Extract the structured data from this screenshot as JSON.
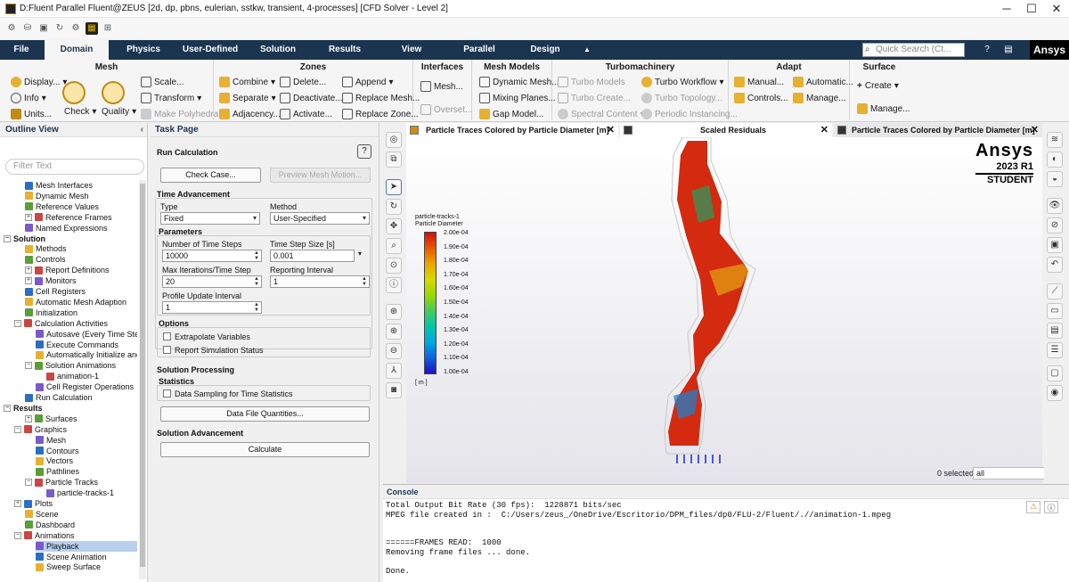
{
  "window": {
    "title": "D:Fluent Parallel Fluent@ZEUS  [2d, dp, pbns, eulerian, sstkw, transient, 4-processes] [CFD Solver - Level 2]",
    "minimize": "─",
    "maximize": "☐",
    "close": "✕"
  },
  "tabs": [
    "File",
    "Domain",
    "Physics",
    "User-Defined",
    "Solution",
    "Results",
    "View",
    "Parallel",
    "Design"
  ],
  "active_tab": "Domain",
  "quick_search": {
    "placeholder": "Quick Search (Ct..."
  },
  "brand": "Ansys",
  "ribbon": {
    "mesh": {
      "title": "Mesh",
      "display": "Display...",
      "info": "Info",
      "units": "Units...",
      "check": "Check",
      "quality": "Quality",
      "scale": "Scale...",
      "transform": "Transform",
      "make_polyhedra": "Make Polyhedra"
    },
    "zones": {
      "title": "Zones",
      "combine": "Combine",
      "separate": "Separate",
      "adjacency": "Adjacency...",
      "delete": "Delete...",
      "deactivate": "Deactivate...",
      "activate": "Activate...",
      "append": "Append",
      "replace_mesh": "Replace Mesh...",
      "replace_zone": "Replace Zone..."
    },
    "interfaces": {
      "title": "Interfaces",
      "mesh": "Mesh...",
      "overset": "Overset..."
    },
    "mesh_models": {
      "title": "Mesh Models",
      "dynamic_mesh": "Dynamic Mesh...",
      "mixing_planes": "Mixing Planes...",
      "gap_model": "Gap Model..."
    },
    "turbo": {
      "title": "Turbomachinery",
      "turbo_models": "Turbo Models",
      "turbo_create": "Turbo Create...",
      "spectral_content": "Spectral Content",
      "turbo_workflow": "Turbo Workflow",
      "turbo_topology": "Turbo Topology...",
      "periodic_instancing": "Periodic Instancing..."
    },
    "adapt": {
      "title": "Adapt",
      "manual": "Manual...",
      "controls": "Controls...",
      "automatic": "Automatic...",
      "manage": "Manage..."
    },
    "surface": {
      "title": "Surface",
      "create": "Create",
      "manage": "Manage..."
    }
  },
  "outline": {
    "title": "Outline View",
    "filter_placeholder": "Filter Text",
    "items": [
      {
        "label": "Mesh Interfaces",
        "level": 2
      },
      {
        "label": "Dynamic Mesh",
        "level": 2
      },
      {
        "label": "Reference Values",
        "level": 2
      },
      {
        "label": "Reference Frames",
        "level": 2,
        "exp": "+"
      },
      {
        "label": "Named Expressions",
        "level": 2
      },
      {
        "label": "Solution",
        "level": 0,
        "exp": "−",
        "hdr": true
      },
      {
        "label": "Methods",
        "level": 2
      },
      {
        "label": "Controls",
        "level": 2
      },
      {
        "label": "Report Definitions",
        "level": 2,
        "exp": "+"
      },
      {
        "label": "Monitors",
        "level": 2,
        "exp": "+"
      },
      {
        "label": "Cell Registers",
        "level": 2
      },
      {
        "label": "Automatic Mesh Adaption",
        "level": 2
      },
      {
        "label": "Initialization",
        "level": 2
      },
      {
        "label": "Calculation Activities",
        "level": 1,
        "exp": "−"
      },
      {
        "label": "Autosave (Every Time Steps)",
        "level": 3
      },
      {
        "label": "Execute Commands",
        "level": 3
      },
      {
        "label": "Automatically Initialize and",
        "level": 3
      },
      {
        "label": "Solution Animations",
        "level": 2,
        "exp": "−"
      },
      {
        "label": "animation-1",
        "level": 4
      },
      {
        "label": "Cell Register Operations",
        "level": 3
      },
      {
        "label": "Run Calculation",
        "level": 2
      },
      {
        "label": "Results",
        "level": 0,
        "exp": "−",
        "hdr": true
      },
      {
        "label": "Surfaces",
        "level": 2,
        "exp": "+"
      },
      {
        "label": "Graphics",
        "level": 1,
        "exp": "−"
      },
      {
        "label": "Mesh",
        "level": 3
      },
      {
        "label": "Contours",
        "level": 3
      },
      {
        "label": "Vectors",
        "level": 3
      },
      {
        "label": "Pathlines",
        "level": 3
      },
      {
        "label": "Particle Tracks",
        "level": 2,
        "exp": "−"
      },
      {
        "label": "particle-tracks-1",
        "level": 4
      },
      {
        "label": "Plots",
        "level": 1,
        "exp": "+"
      },
      {
        "label": "Scene",
        "level": 2
      },
      {
        "label": "Dashboard",
        "level": 2
      },
      {
        "label": "Animations",
        "level": 1,
        "exp": "−"
      },
      {
        "label": "Playback",
        "level": 3,
        "sel": true
      },
      {
        "label": "Scene Animation",
        "level": 3
      },
      {
        "label": "Sweep Surface",
        "level": 3
      }
    ]
  },
  "task": {
    "panel_title": "Task Page",
    "title": "Run Calculation",
    "help": "?",
    "check_case": "Check Case...",
    "preview_mesh_motion": "Preview Mesh Motion...",
    "time_advancement": "Time Advancement",
    "type_label": "Type",
    "type_value": "Fixed",
    "method_label": "Method",
    "method_value": "User-Specified",
    "parameters": "Parameters",
    "n_steps_label": "Number of Time Steps",
    "n_steps_value": "10000",
    "dt_label": "Time Step Size [s]",
    "dt_value": "0.001",
    "max_iter_label": "Max Iterations/Time Step",
    "max_iter_value": "20",
    "report_int_label": "Reporting Interval",
    "report_int_value": "1",
    "profile_label": "Profile Update Interval",
    "profile_value": "1",
    "options": "Options",
    "extrapolate": "Extrapolate Variables",
    "report_status": "Report Simulation Status",
    "sol_processing": "Solution Processing",
    "statistics": "Statistics",
    "data_sampling": "Data Sampling for Time Statistics",
    "data_file": "Data File Quantities...",
    "sol_advancement": "Solution Advancement",
    "calculate": "Calculate"
  },
  "graphics": {
    "tab1": "Particle Traces Colored by Particle Diameter [m]",
    "tab2": "Scaled Residuals",
    "tab3": "Particle Traces Colored by Particle Diameter [m]",
    "legend_title1": "particle-tracks-1",
    "legend_title2": "Particle Diameter",
    "legend_values": [
      "2.00e-04",
      "1.90e-04",
      "1.80e-04",
      "1.70e-04",
      "1.60e-04",
      "1.50e-04",
      "1.40e-04",
      "1.30e-04",
      "1.20e-04",
      "1.10e-04",
      "1.00e-04"
    ],
    "legend_unit": "[ m ]",
    "brand_name": "Ansys",
    "brand_version": "2023 R1",
    "brand_edition": "STUDENT",
    "selected": "0 selected",
    "selection_filter": "all"
  },
  "console": {
    "title": "Console",
    "lines": [
      "Total Output Bit Rate (30 fps):  1228871 bits/sec",
      "MPEG file created in :  C:/Users/zeus_/OneDrive/Escritorio/DPM_files/dp0/FLU-2/Fluent/.//animation-1.mpeg",
      "",
      "",
      "======FRAMES READ:  1000",
      "Removing frame files ... done.",
      "",
      "Done."
    ]
  },
  "colors": {
    "tabbar": "#1b3550",
    "accent": "#c48a12",
    "selection": "#b8d0ee"
  }
}
